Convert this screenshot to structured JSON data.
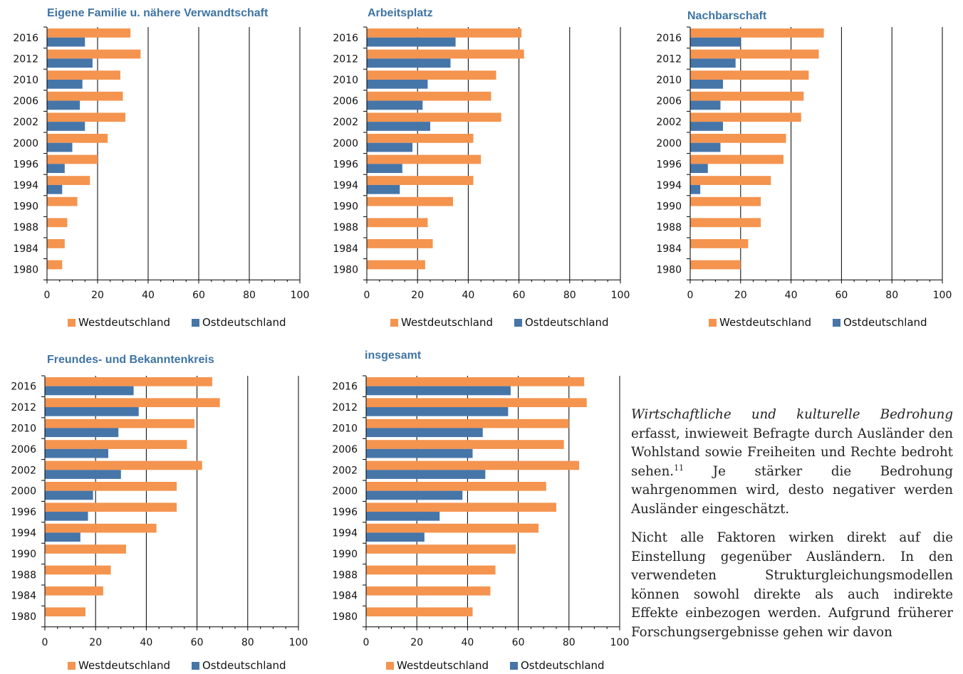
{
  "colors": {
    "west": "#f4944f",
    "east": "#4675a8",
    "title": "#3f74a4"
  },
  "legend": {
    "west": "Westdeutschland",
    "east": "Ostdeutschland"
  },
  "chart_data": [
    {
      "type": "bar",
      "orientation": "horizontal",
      "title": "Eigene Familie u. nähere Verwandtschaft",
      "categories": [
        "2016",
        "2012",
        "2010",
        "2006",
        "2002",
        "2000",
        "1996",
        "1994",
        "1990",
        "1988",
        "1984",
        "1980"
      ],
      "series": [
        {
          "name": "Westdeutschland",
          "values": [
            33,
            37,
            29,
            30,
            31,
            24,
            20,
            17,
            12,
            8,
            7,
            6
          ]
        },
        {
          "name": "Ostdeutschland",
          "values": [
            15,
            18,
            14,
            13,
            15,
            10,
            7,
            6,
            null,
            null,
            null,
            null
          ]
        }
      ],
      "xlim": [
        0,
        100
      ],
      "xticks": [
        0,
        20,
        40,
        60,
        80,
        100
      ],
      "grid": true,
      "legend_position": "bottom"
    },
    {
      "type": "bar",
      "orientation": "horizontal",
      "title": "Arbeitsplatz",
      "categories": [
        "2016",
        "2012",
        "2010",
        "2006",
        "2002",
        "2000",
        "1996",
        "1994",
        "1990",
        "1988",
        "1984",
        "1980"
      ],
      "series": [
        {
          "name": "Westdeutschland",
          "values": [
            61,
            62,
            51,
            49,
            53,
            42,
            45,
            42,
            34,
            24,
            26,
            23
          ]
        },
        {
          "name": "Ostdeutschland",
          "values": [
            35,
            33,
            24,
            22,
            25,
            18,
            14,
            13,
            null,
            null,
            null,
            null
          ]
        }
      ],
      "xlim": [
        0,
        100
      ],
      "xticks": [
        0,
        20,
        40,
        60,
        80,
        100
      ],
      "grid": true,
      "legend_position": "bottom"
    },
    {
      "type": "bar",
      "orientation": "horizontal",
      "title": "Nachbarschaft",
      "categories": [
        "2016",
        "2012",
        "2010",
        "2006",
        "2002",
        "2000",
        "1996",
        "1994",
        "1990",
        "1988",
        "1984",
        "1980"
      ],
      "series": [
        {
          "name": "Westdeutschland",
          "values": [
            53,
            51,
            47,
            45,
            44,
            38,
            37,
            32,
            28,
            28,
            23,
            20
          ]
        },
        {
          "name": "Ostdeutschland",
          "values": [
            20,
            18,
            13,
            12,
            13,
            12,
            7,
            4,
            null,
            null,
            null,
            null
          ]
        }
      ],
      "xlim": [
        0,
        100
      ],
      "xticks": [
        0,
        20,
        40,
        60,
        80,
        100
      ],
      "grid": true,
      "legend_position": "bottom"
    },
    {
      "type": "bar",
      "orientation": "horizontal",
      "title": "Freundes- und Bekanntenkreis",
      "categories": [
        "2016",
        "2012",
        "2010",
        "2006",
        "2002",
        "2000",
        "1996",
        "1994",
        "1990",
        "1988",
        "1984",
        "1980"
      ],
      "series": [
        {
          "name": "Westdeutschland",
          "values": [
            66,
            69,
            59,
            56,
            62,
            52,
            52,
            44,
            32,
            26,
            23,
            16
          ]
        },
        {
          "name": "Ostdeutschland",
          "values": [
            35,
            37,
            29,
            25,
            30,
            19,
            17,
            14,
            null,
            null,
            null,
            null
          ]
        }
      ],
      "xlim": [
        0,
        100
      ],
      "xticks": [
        0,
        20,
        40,
        60,
        80,
        100
      ],
      "grid": true,
      "legend_position": "bottom"
    },
    {
      "type": "bar",
      "orientation": "horizontal",
      "title": "insgesamt",
      "categories": [
        "2016",
        "2012",
        "2010",
        "2006",
        "2002",
        "2000",
        "1996",
        "1994",
        "1990",
        "1988",
        "1984",
        "1980"
      ],
      "series": [
        {
          "name": "Westdeutschland",
          "values": [
            86,
            87,
            80,
            78,
            84,
            71,
            75,
            68,
            59,
            51,
            49,
            42
          ]
        },
        {
          "name": "Ostdeutschland",
          "values": [
            57,
            56,
            46,
            42,
            47,
            38,
            29,
            23,
            null,
            null,
            null,
            null
          ]
        }
      ],
      "xlim": [
        0,
        100
      ],
      "xticks": [
        0,
        20,
        40,
        60,
        80,
        100
      ],
      "grid": true,
      "legend_position": "bottom"
    }
  ],
  "text": {
    "p1_italic": "Wirtschaftliche und kulturelle Bedrohung",
    "p1_a": "erfasst, inwieweit Befragte durch Ausländer den Wohlstand sowie Freiheiten und Rechte bedroht sehen.",
    "p1_footnote": "11",
    "p1_b": "Je stärker die Bedrohung wahrgenommen wird, desto negativer werden Ausländer eingeschätzt.",
    "p2": "Nicht alle Faktoren wirken direkt auf die Einstellung gegenüber Ausländern. In den verwendeten Strukturgleichungsmodellen können sowohl direkte als auch indirekte Effekte einbezogen werden. Aufgrund früherer Forschungsergebnisse gehen wir davon"
  }
}
